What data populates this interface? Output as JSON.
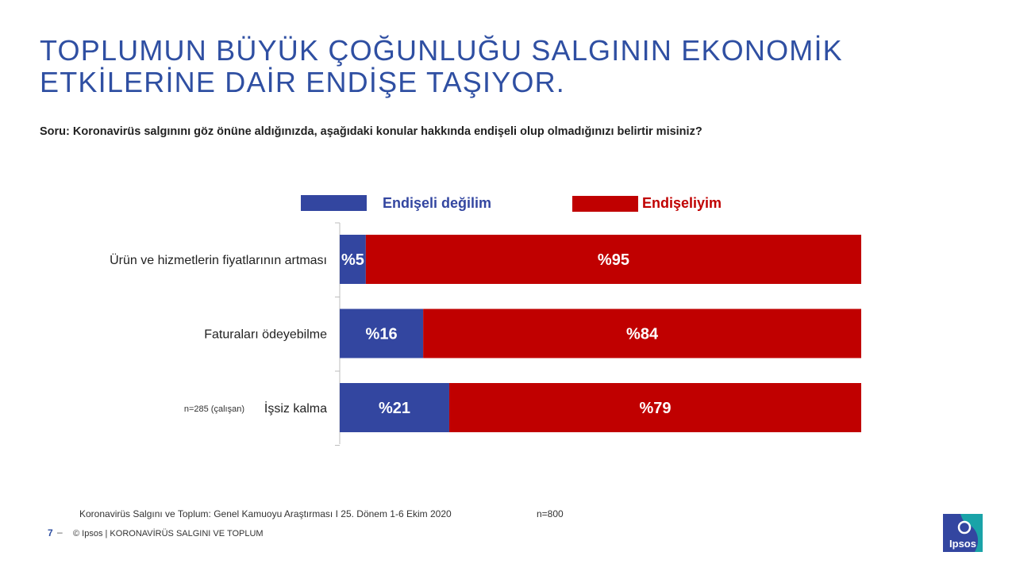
{
  "title_lines": [
    "TOPLUMUN BÜYÜK ÇOĞUNLUĞU SALGININ EKONOMİK",
    "ETKİLERİNE DAİR ENDİŞE TAŞIYOR."
  ],
  "question": "Soru:  Koronavirüs salgınını göz önüne aldığınızda, aşağıdaki konular hakkında endişeli olup olmadığınızı belirtir misiniz?",
  "colors": {
    "blue": "#3346a0",
    "red": "#c00000",
    "title": "#2f4fa2"
  },
  "chart_data": {
    "type": "bar",
    "orientation": "horizontal",
    "stacked": true,
    "categories": [
      "Ürün ve hizmetlerin fiyatlarının artması",
      "Faturaları ödeyebilme",
      "İşsiz kalma"
    ],
    "category_notes": [
      "",
      "",
      "n=285 (çalışan)"
    ],
    "series": [
      {
        "name": "Endişeli değilim",
        "values": [
          5,
          16,
          21
        ],
        "labels": [
          "%5",
          "%16",
          "%21"
        ]
      },
      {
        "name": "Endişeliyim",
        "values": [
          95,
          84,
          79
        ],
        "labels": [
          "%95",
          "%84",
          "%79"
        ]
      }
    ],
    "xlim": [
      0,
      100
    ],
    "legend": "top"
  },
  "footer": {
    "source": "Koronavirüs  Salgını  ve  Toplum:  Genel  Kamuoyu  Araştırması  I   25.  Dönem   1-6  Ekim  2020",
    "n": "n=800",
    "page_number": "7",
    "copyright": "© Ipsos | KORONAVİRÜS SALGINI VE TOPLUM"
  },
  "logo_text": "Ipsos"
}
